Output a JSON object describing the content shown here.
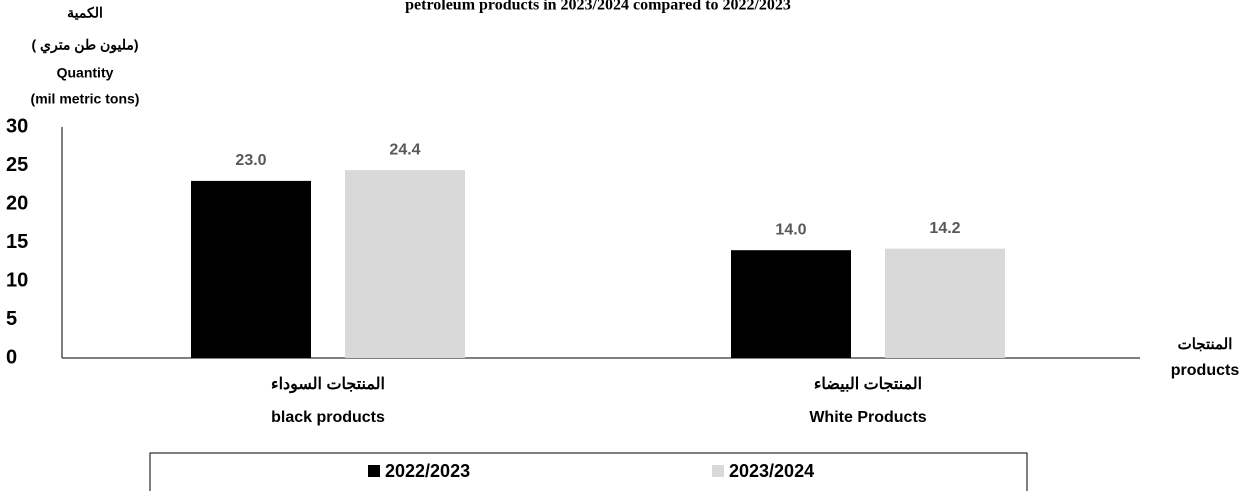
{
  "chart_data": {
    "type": "bar",
    "title": "petroleum products in 2023/2024 compared to 2022/2023",
    "y_label": [
      "الكمية",
      "( مليون طن متري)",
      "Quantity",
      "(mil metric tons)"
    ],
    "x_label": [
      "المنتجات",
      "products"
    ],
    "categories": [
      [
        "المنتجات السوداء",
        "black products"
      ],
      [
        "المنتجات البيضاء",
        "White Products"
      ]
    ],
    "series": [
      {
        "name": "2022/2023",
        "color": "#000000",
        "values": [
          23,
          14
        ],
        "value_labels": [
          "23.0",
          "14.0"
        ]
      },
      {
        "name": "2023/2024",
        "color": "#d9d9d9",
        "values": [
          24.4,
          14.2
        ],
        "value_labels": [
          "24.4",
          "14.2"
        ]
      }
    ],
    "ylim": [
      0,
      30
    ],
    "yticks": [
      0,
      5,
      10,
      15,
      20,
      25,
      30
    ],
    "grid": false,
    "legend": "bottom"
  }
}
